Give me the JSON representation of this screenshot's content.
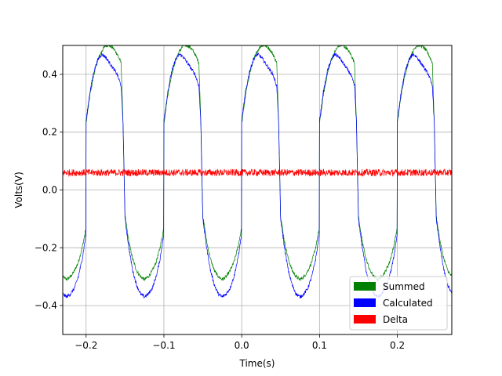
{
  "chart_data": {
    "type": "line",
    "title": "",
    "xlabel": "Time(s)",
    "ylabel": "Volts(V)",
    "xlim": [
      -0.23,
      0.27
    ],
    "ylim": [
      -0.5,
      0.5
    ],
    "x_ticks": [
      -0.2,
      -0.1,
      0.0,
      0.1,
      0.2
    ],
    "x_tick_labels": [
      "−0.2",
      "−0.1",
      "0.0",
      "0.1",
      "0.2"
    ],
    "y_ticks": [
      -0.4,
      -0.2,
      0.0,
      0.2,
      0.4
    ],
    "y_tick_labels": [
      "−0.4",
      "−0.2",
      "0.0",
      "0.2",
      "0.4"
    ],
    "grid": true,
    "legend_position": "lower-right",
    "period": 0.1,
    "series": [
      {
        "name": "Summed",
        "color": "#008000",
        "values_per_period": {
          "x": [
            -0.2,
            -0.195,
            -0.19,
            -0.185,
            -0.18,
            -0.175,
            -0.17,
            -0.165,
            -0.16,
            -0.155,
            -0.1525,
            -0.15,
            -0.145,
            -0.14,
            -0.135,
            -0.13,
            -0.125,
            -0.12,
            -0.115,
            -0.11,
            -0.105,
            -0.1
          ],
          "y": [
            0.23,
            0.33,
            0.4,
            0.45,
            0.48,
            0.5,
            0.5,
            0.49,
            0.47,
            0.44,
            0.23,
            -0.09,
            -0.18,
            -0.24,
            -0.28,
            -0.3,
            -0.31,
            -0.3,
            -0.28,
            -0.25,
            -0.2,
            -0.13
          ]
        }
      },
      {
        "name": "Calculated",
        "color": "#0000ff",
        "values_per_period": {
          "x": [
            -0.2,
            -0.195,
            -0.19,
            -0.185,
            -0.18,
            -0.175,
            -0.17,
            -0.165,
            -0.16,
            -0.155,
            -0.1525,
            -0.15,
            -0.145,
            -0.14,
            -0.135,
            -0.13,
            -0.125,
            -0.12,
            -0.115,
            -0.11,
            -0.105,
            -0.1
          ],
          "y": [
            0.24,
            0.34,
            0.41,
            0.45,
            0.47,
            0.46,
            0.44,
            0.42,
            0.4,
            0.36,
            0.23,
            -0.1,
            -0.2,
            -0.28,
            -0.33,
            -0.36,
            -0.37,
            -0.36,
            -0.34,
            -0.3,
            -0.24,
            -0.15
          ]
        }
      },
      {
        "name": "Delta",
        "color": "#ff0000",
        "mean": 0.06,
        "noise_amplitude": 0.012
      }
    ]
  }
}
